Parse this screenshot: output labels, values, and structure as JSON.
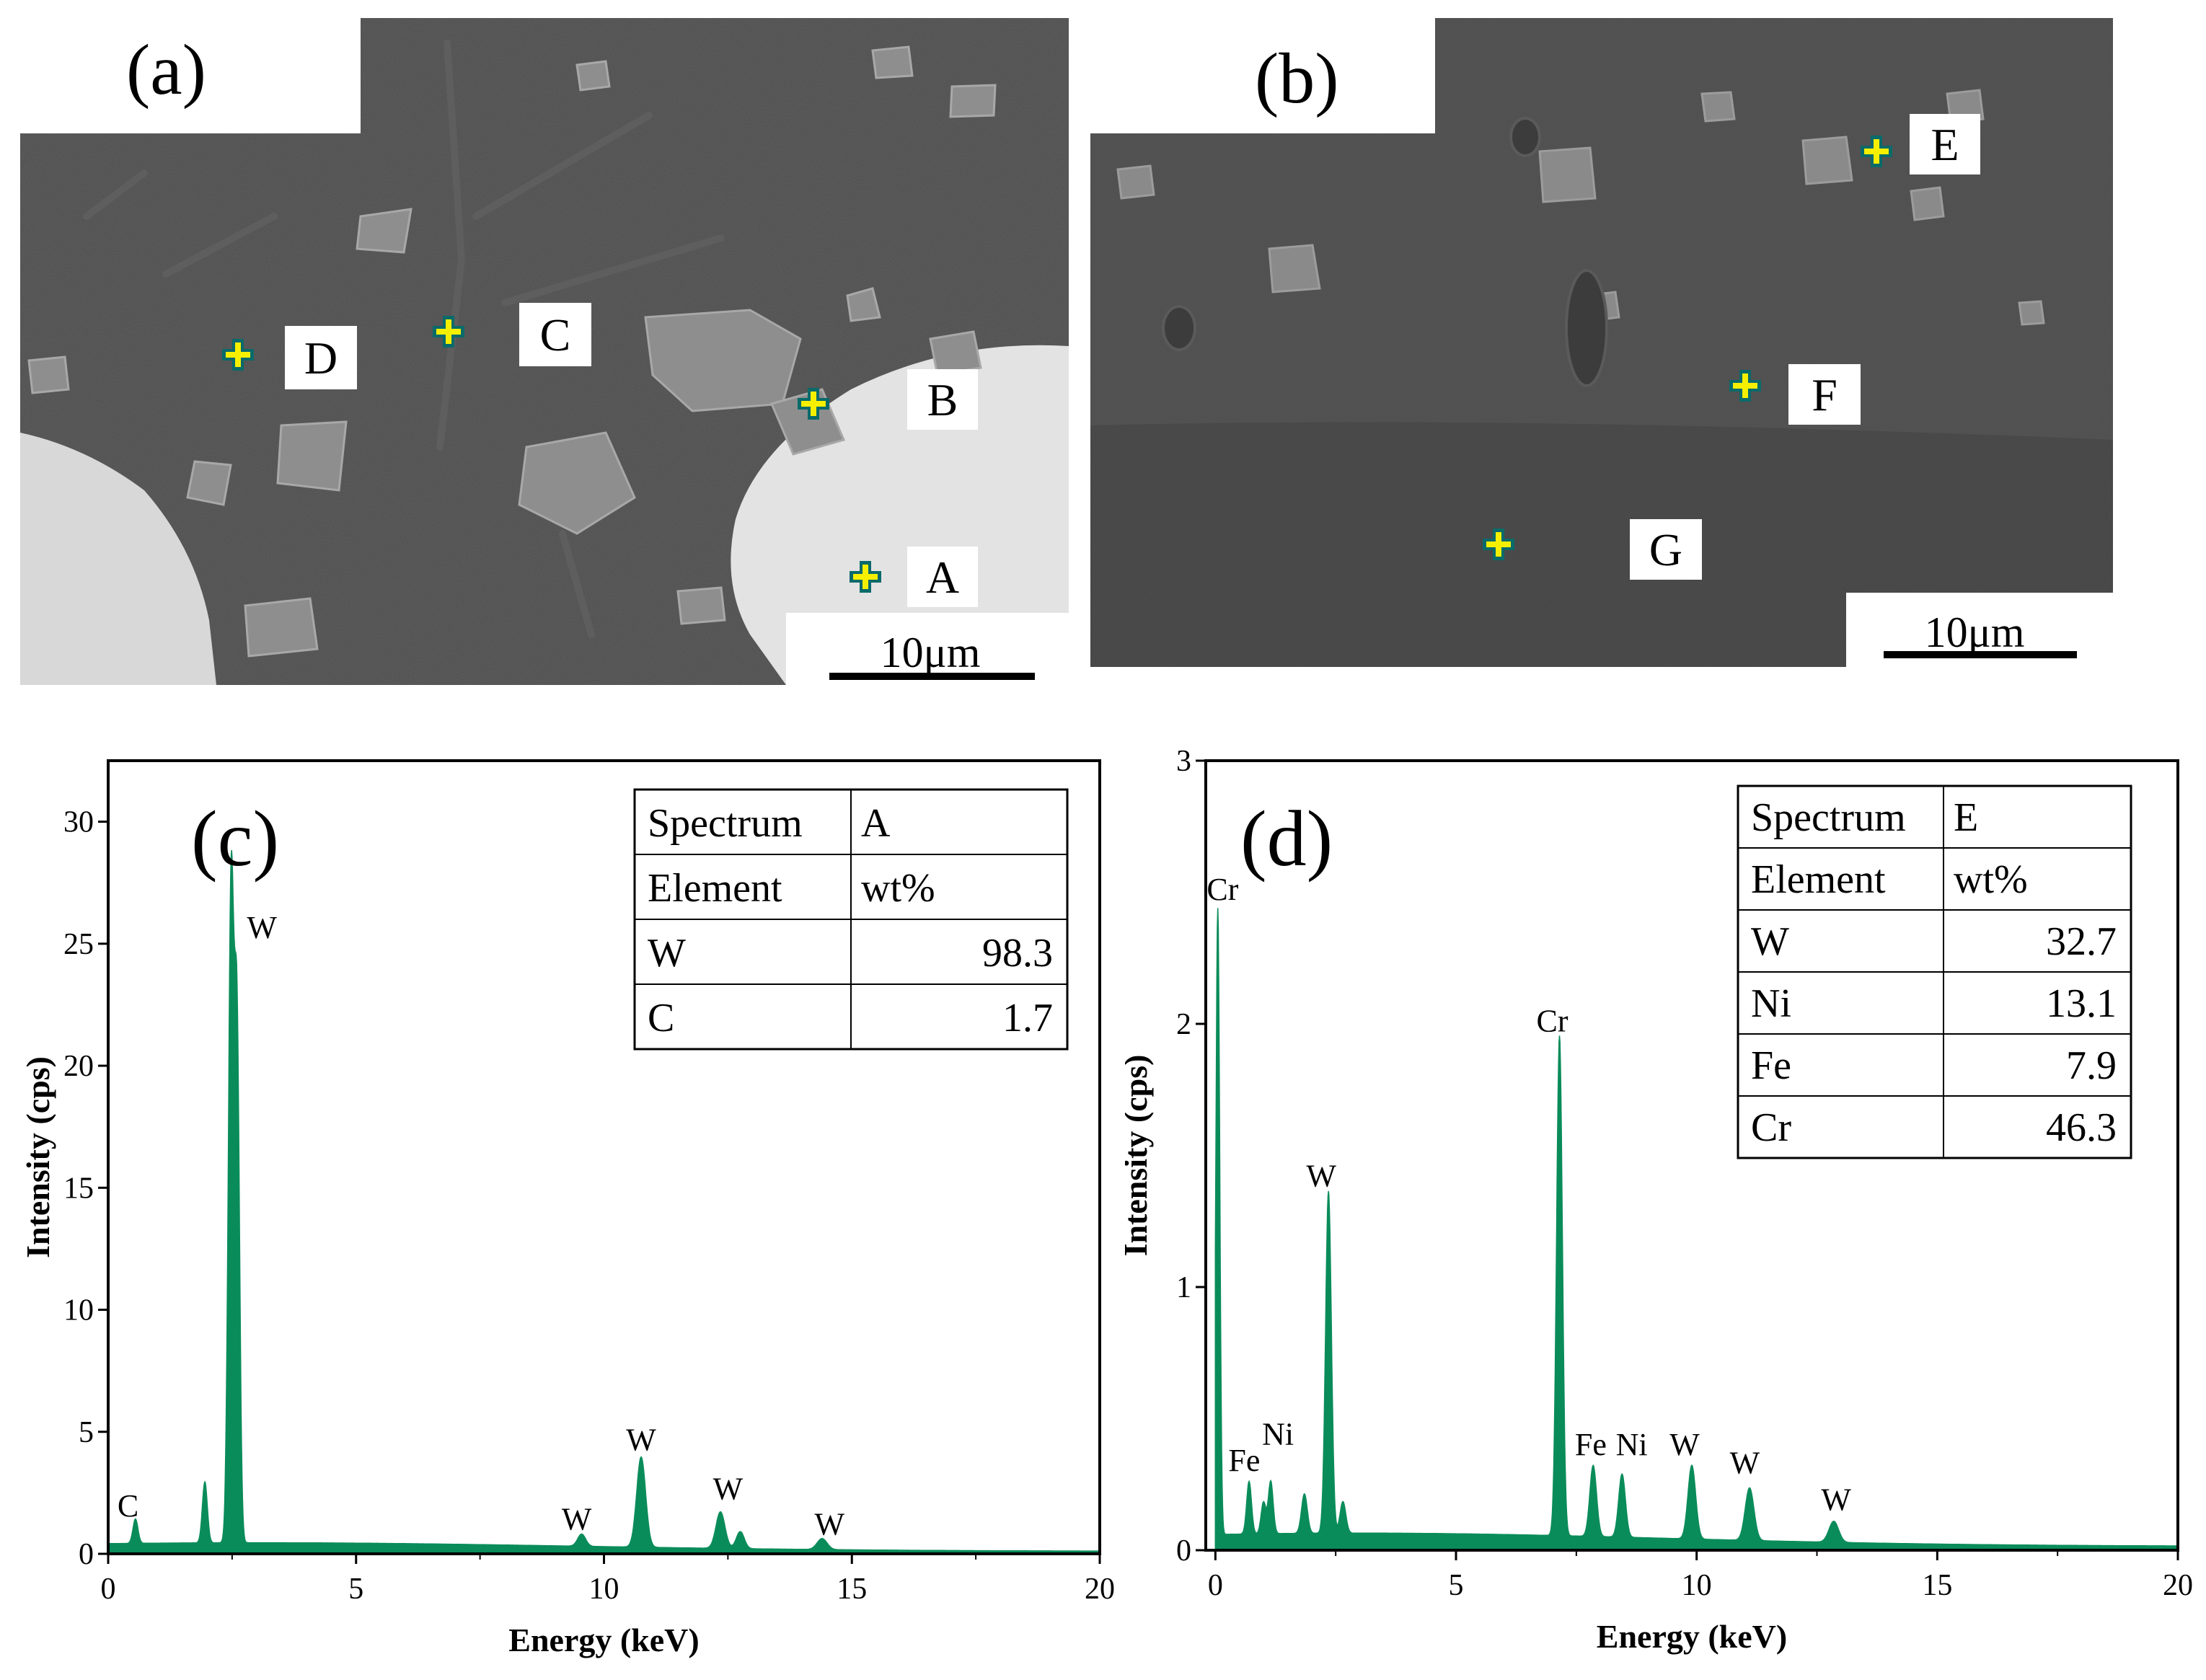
{
  "panels": {
    "a": {
      "label": "(a)",
      "scale_bar": "10μm",
      "points": [
        {
          "id": "A",
          "label": "A"
        },
        {
          "id": "B",
          "label": "B"
        },
        {
          "id": "C",
          "label": "C"
        },
        {
          "id": "D",
          "label": "D"
        }
      ]
    },
    "b": {
      "label": "(b)",
      "scale_bar": "10μm",
      "points": [
        {
          "id": "E",
          "label": "E"
        },
        {
          "id": "F",
          "label": "F"
        },
        {
          "id": "G",
          "label": "G"
        }
      ]
    }
  },
  "chart_data": [
    {
      "panel_label": "(c)",
      "type": "area",
      "xlabel": "Energy (keV)",
      "ylabel": "Intensity (cps)",
      "xlim": [
        0,
        20
      ],
      "ylim": [
        0,
        32.5
      ],
      "xticks": [
        0,
        5,
        10,
        15,
        20
      ],
      "yticks": [
        0,
        5,
        10,
        15,
        20,
        25,
        30
      ],
      "color": "#0a8c5a",
      "baseline": 0.35,
      "peaks": [
        {
          "x": 0.55,
          "y": 1.0,
          "w": 0.05
        },
        {
          "x": 1.95,
          "y": 2.5,
          "w": 0.05
        },
        {
          "x": 2.48,
          "y": 27.0,
          "w": 0.055
        },
        {
          "x": 2.6,
          "y": 20.5,
          "w": 0.05
        },
        {
          "x": 9.55,
          "y": 0.5,
          "w": 0.08
        },
        {
          "x": 10.75,
          "y": 3.7,
          "w": 0.09
        },
        {
          "x": 12.35,
          "y": 1.5,
          "w": 0.09
        },
        {
          "x": 12.75,
          "y": 0.7,
          "w": 0.08
        },
        {
          "x": 14.4,
          "y": 0.45,
          "w": 0.1
        }
      ],
      "peak_labels": [
        {
          "text": "C",
          "x": 0.4,
          "y": 1.3
        },
        {
          "text": "W",
          "x": 3.1,
          "y": 25.0
        },
        {
          "text": "W",
          "x": 9.45,
          "y": 0.75
        },
        {
          "text": "W",
          "x": 10.75,
          "y": 4.0
        },
        {
          "text": "W",
          "x": 12.5,
          "y": 2.0
        },
        {
          "text": "W",
          "x": 14.55,
          "y": 0.55
        }
      ],
      "table": {
        "header": [
          "Spectrum",
          "A"
        ],
        "subheader": [
          "Element",
          "wt%"
        ],
        "rows": [
          {
            "element": "W",
            "value": "98.3"
          },
          {
            "element": "C",
            "value": "1.7"
          }
        ]
      }
    },
    {
      "panel_label": "(d)",
      "type": "area",
      "xlabel": "Energy (keV)",
      "ylabel": "Intensity (cps)",
      "xlim": [
        -0.2,
        20
      ],
      "ylim": [
        0,
        3
      ],
      "xticks": [
        0,
        5,
        10,
        15,
        20
      ],
      "yticks": [
        0,
        1,
        2,
        3
      ],
      "color": "#0a8c5a",
      "baseline": 0.05,
      "peaks": [
        {
          "x": 0.05,
          "y": 2.38,
          "w": 0.04
        },
        {
          "x": 0.7,
          "y": 0.2,
          "w": 0.05
        },
        {
          "x": 1.0,
          "y": 0.12,
          "w": 0.05
        },
        {
          "x": 1.15,
          "y": 0.2,
          "w": 0.05
        },
        {
          "x": 1.85,
          "y": 0.15,
          "w": 0.06
        },
        {
          "x": 2.35,
          "y": 1.3,
          "w": 0.06
        },
        {
          "x": 2.65,
          "y": 0.12,
          "w": 0.06
        },
        {
          "x": 7.15,
          "y": 1.9,
          "w": 0.06
        },
        {
          "x": 7.85,
          "y": 0.27,
          "w": 0.07
        },
        {
          "x": 8.45,
          "y": 0.24,
          "w": 0.07
        },
        {
          "x": 9.9,
          "y": 0.28,
          "w": 0.08
        },
        {
          "x": 11.1,
          "y": 0.2,
          "w": 0.09
        },
        {
          "x": 12.85,
          "y": 0.08,
          "w": 0.1
        }
      ],
      "peak_labels": [
        {
          "text": "Cr",
          "x": 0.15,
          "y": 2.45
        },
        {
          "text": "Fe",
          "x": 0.6,
          "y": 0.28
        },
        {
          "text": "Ni",
          "x": 1.3,
          "y": 0.38
        },
        {
          "text": "W",
          "x": 2.2,
          "y": 1.36
        },
        {
          "text": "Cr",
          "x": 7.0,
          "y": 1.95
        },
        {
          "text": "Fe",
          "x": 7.8,
          "y": 0.34
        },
        {
          "text": "Ni",
          "x": 8.65,
          "y": 0.34
        },
        {
          "text": "W",
          "x": 9.75,
          "y": 0.34
        },
        {
          "text": "W",
          "x": 11.0,
          "y": 0.27
        },
        {
          "text": "W",
          "x": 12.9,
          "y": 0.13
        }
      ],
      "table": {
        "header": [
          "Spectrum",
          "E"
        ],
        "subheader": [
          "Element",
          "wt%"
        ],
        "rows": [
          {
            "element": "W",
            "value": "32.7"
          },
          {
            "element": "Ni",
            "value": "13.1"
          },
          {
            "element": "Fe",
            "value": "7.9"
          },
          {
            "element": "Cr",
            "value": "46.3"
          }
        ]
      }
    }
  ]
}
